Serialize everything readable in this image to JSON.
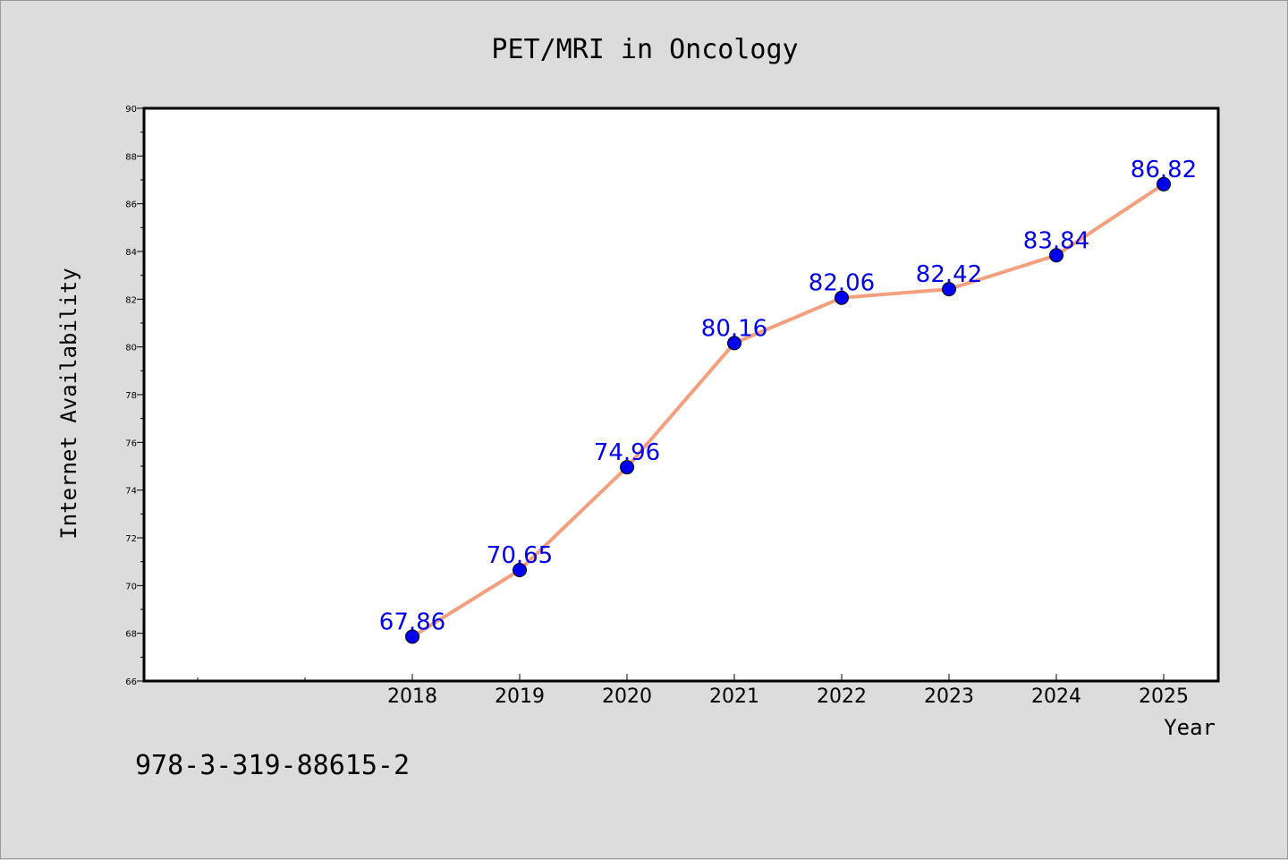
{
  "chart_data": {
    "type": "line",
    "title": "PET/MRI in Oncology",
    "xlabel": "Year",
    "ylabel": "Internet Availability",
    "categories": [
      "2018",
      "2019",
      "2020",
      "2021",
      "2022",
      "2023",
      "2024",
      "2025"
    ],
    "series": [
      {
        "values": [
          67.86,
          70.65,
          74.96,
          80.16,
          82.06,
          82.42,
          83.84,
          86.82
        ],
        "labels": [
          "67.86",
          "70.65",
          "74.96",
          "80.16",
          "82.06",
          "82.42",
          "83.84",
          "86.82"
        ],
        "line_color": "#f4a07e",
        "marker_color": "#0000ee",
        "label_color": "#0000ee"
      }
    ],
    "ylim": [
      66,
      90
    ],
    "yticks": [
      "66",
      "68",
      "70",
      "72",
      "74",
      "76",
      "78",
      "80",
      "82",
      "84",
      "86",
      "88",
      "90"
    ],
    "grid": false,
    "legend": false
  },
  "footer": {
    "isbn": "978-3-319-88615-2"
  },
  "colors": {
    "background": "#dcdcdc",
    "plot_background": "#ffffff"
  }
}
